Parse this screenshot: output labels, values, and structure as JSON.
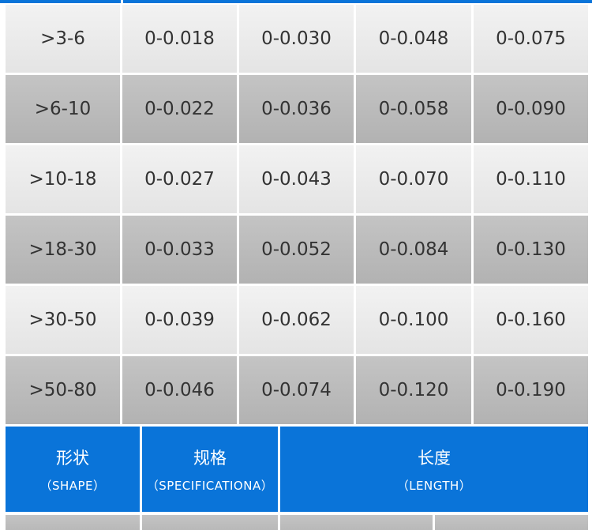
{
  "table": {
    "rows": [
      [
        ">3-6",
        "0-0.018",
        "0-0.030",
        "0-0.048",
        "0-0.075"
      ],
      [
        ">6-10",
        "0-0.022",
        "0-0.036",
        "0-0.058",
        "0-0.090"
      ],
      [
        ">10-18",
        "0-0.027",
        "0-0.043",
        "0-0.070",
        "0-0.110"
      ],
      [
        ">18-30",
        "0-0.033",
        "0-0.052",
        "0-0.084",
        "0-0.130"
      ],
      [
        ">30-50",
        "0-0.039",
        "0-0.062",
        "0-0.100",
        "0-0.160"
      ],
      [
        ">50-80",
        "0-0.046",
        "0-0.074",
        "0-0.120",
        "0-0.190"
      ]
    ]
  },
  "header": {
    "cells": [
      {
        "title": "形状",
        "subtitle": "（SHAPE）"
      },
      {
        "title": "规格",
        "subtitle": "（SPECIFICATIONA）"
      },
      {
        "title": "长度",
        "subtitle": "（LENGTH）"
      }
    ]
  }
}
